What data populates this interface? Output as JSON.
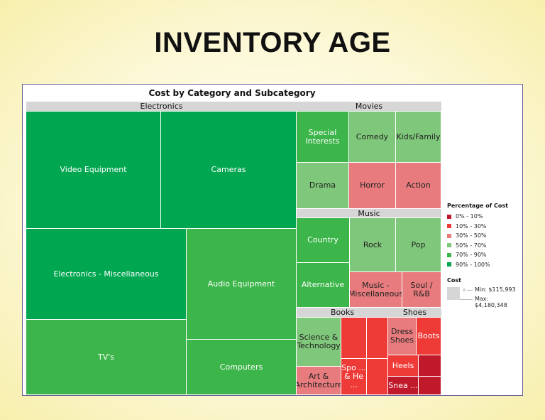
{
  "page_title": "INVENTORY AGE",
  "chart_data": {
    "type": "treemap",
    "title": "Cost by Category and Subcategory",
    "color_legend": {
      "title": "Percentage of Cost",
      "bands": [
        {
          "label": "0% - 10%",
          "color": "#c0192b"
        },
        {
          "label": "10% - 30%",
          "color": "#ee3b38"
        },
        {
          "label": "30% - 50%",
          "color": "#e77b7d"
        },
        {
          "label": "50% - 70%",
          "color": "#7fc77a"
        },
        {
          "label": "70% - 90%",
          "color": "#3cb54a"
        },
        {
          "label": "90% - 100%",
          "color": "#00a650"
        }
      ]
    },
    "size_legend": {
      "title": "Cost",
      "min": "Min: $115,993",
      "max": "Max: $4,180,348"
    },
    "categories": [
      {
        "name": "Electronics",
        "leaves": [
          {
            "label": "Video Equipment",
            "band": 5
          },
          {
            "label": "Cameras",
            "band": 5
          },
          {
            "label": "Electronics - Miscellaneous",
            "band": 5
          },
          {
            "label": "TV's",
            "band": 4
          },
          {
            "label": "Audio Equipment",
            "band": 4
          },
          {
            "label": "Computers",
            "band": 4
          }
        ]
      },
      {
        "name": "Movies",
        "leaves": [
          {
            "label": "Special Interests",
            "band": 4
          },
          {
            "label": "Comedy",
            "band": 3
          },
          {
            "label": "Kids/Family",
            "band": 3
          },
          {
            "label": "Drama",
            "band": 3
          },
          {
            "label": "Horror",
            "band": 2
          },
          {
            "label": "Action",
            "band": 2
          }
        ]
      },
      {
        "name": "Music",
        "leaves": [
          {
            "label": "Country",
            "band": 4
          },
          {
            "label": "Alternative",
            "band": 4
          },
          {
            "label": "Rock",
            "band": 3
          },
          {
            "label": "Pop",
            "band": 3
          },
          {
            "label": "Music - Miscellaneous",
            "band": 2
          },
          {
            "label": "Soul / R&B",
            "band": 2
          }
        ]
      },
      {
        "name": "Books",
        "leaves": [
          {
            "label": "Science & Technology",
            "band": 3
          },
          {
            "label": "Art & Architecture",
            "band": 2
          },
          {
            "label": "",
            "band": 1
          },
          {
            "label": "",
            "band": 1
          },
          {
            "label": "Spo ... & He ...",
            "band": 1
          },
          {
            "label": "",
            "band": 1
          }
        ]
      },
      {
        "name": "Shoes",
        "leaves": [
          {
            "label": "Dress Shoes",
            "band": 2
          },
          {
            "label": "Boots",
            "band": 1
          },
          {
            "label": "Heels",
            "band": 1
          },
          {
            "label": "",
            "band": 0
          },
          {
            "label": "Snea ...",
            "band": 0
          },
          {
            "label": "",
            "band": 0
          }
        ]
      }
    ]
  }
}
